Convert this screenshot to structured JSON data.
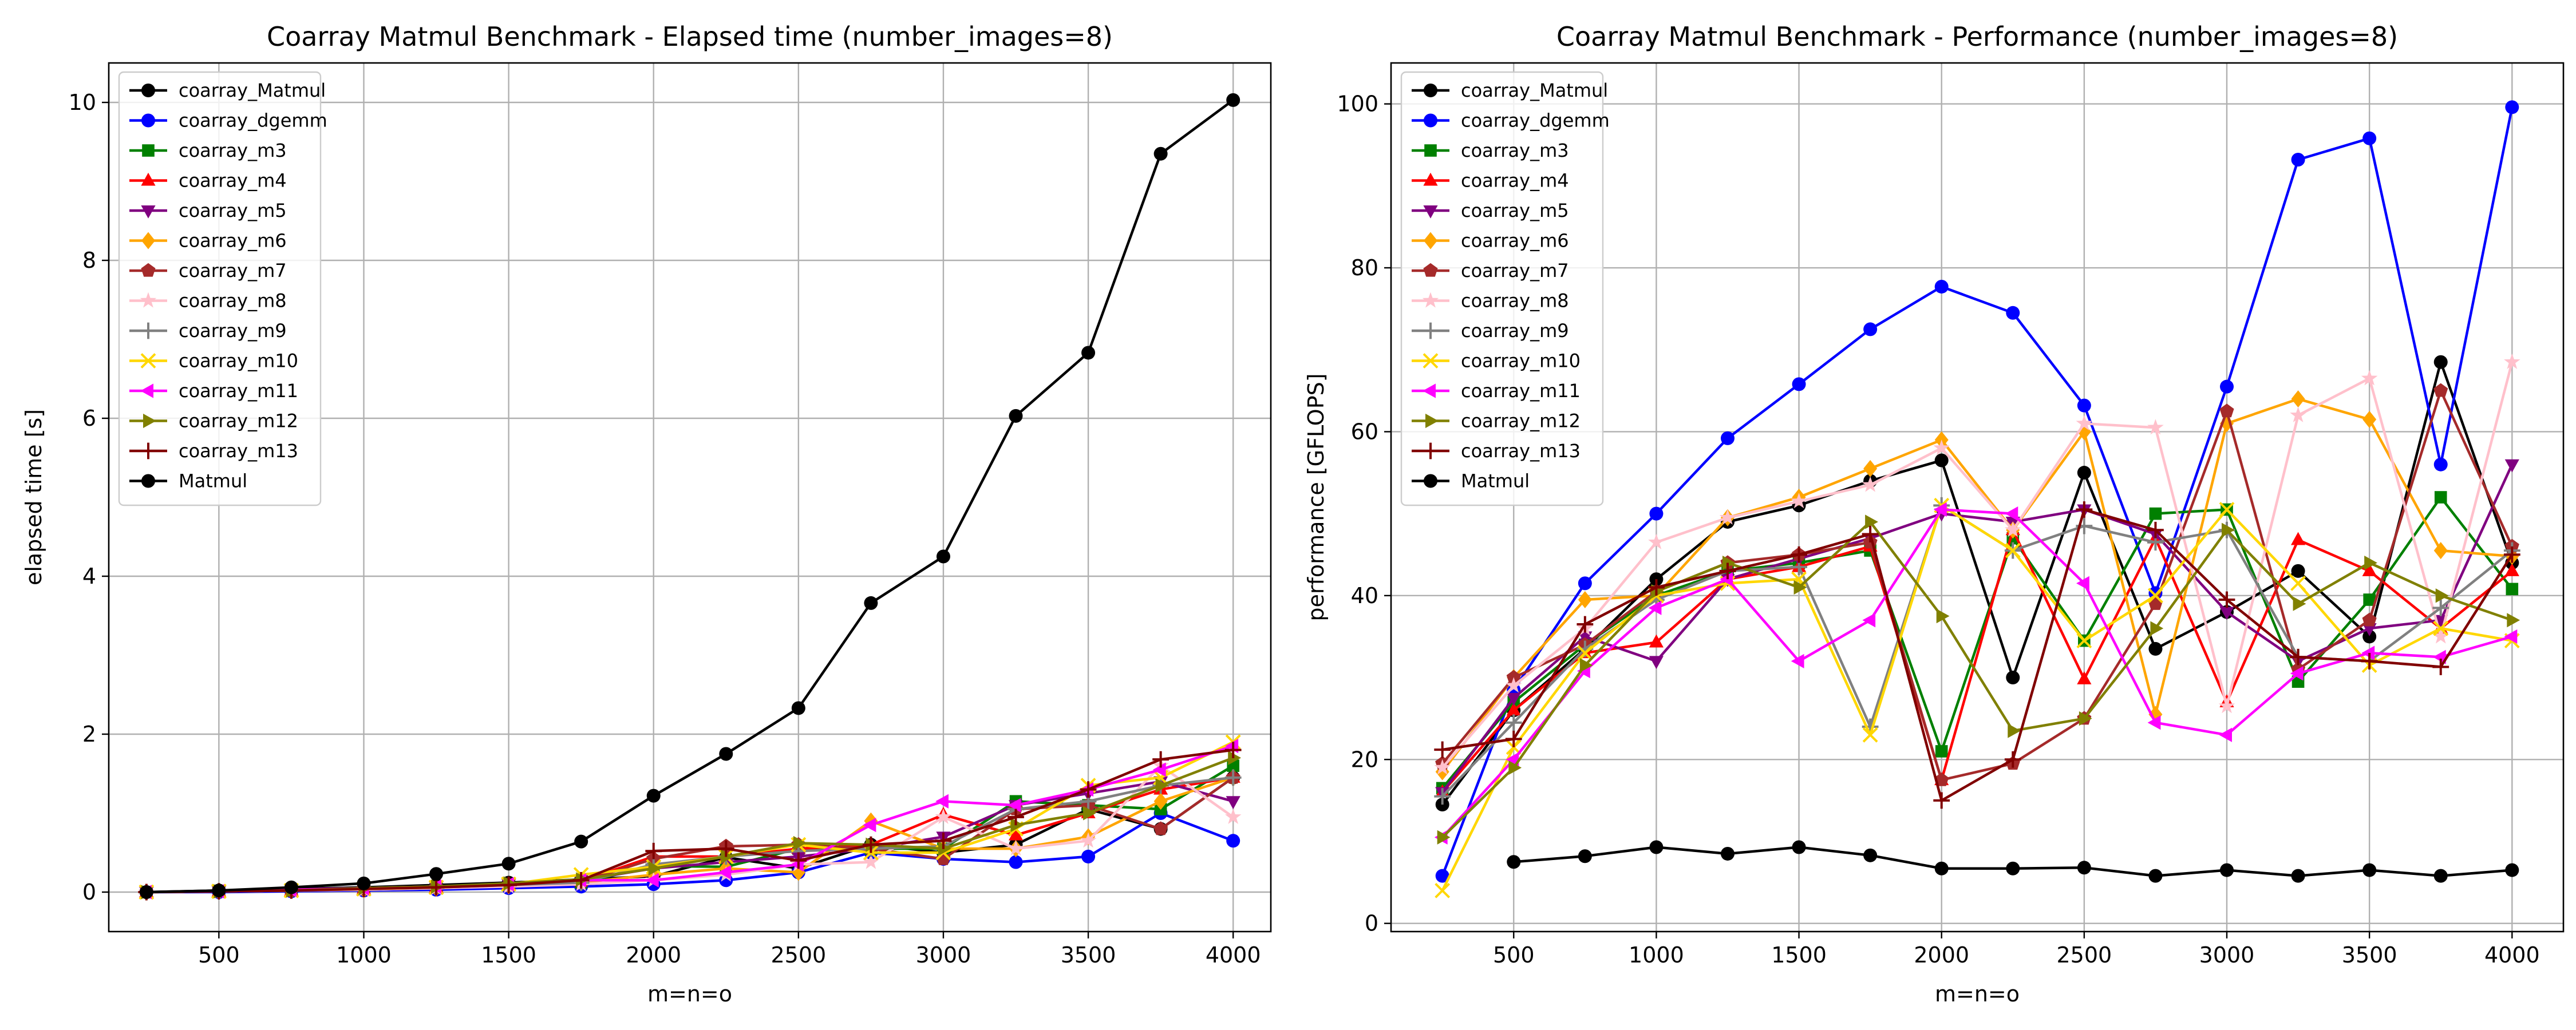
{
  "chart_data": [
    {
      "type": "line",
      "title": "Coarray Matmul Benchmark - Elapsed time (number_images=8)",
      "xlabel": "m=n=o",
      "ylabel": "elapsed time [s]",
      "x": [
        250,
        500,
        750,
        1000,
        1250,
        1500,
        1750,
        2000,
        2250,
        2500,
        2750,
        3000,
        3250,
        3500,
        3750,
        4000
      ],
      "xlim": [
        120,
        4130
      ],
      "ylim": [
        -0.5,
        10.5
      ],
      "xticks": [
        500,
        1000,
        1500,
        2000,
        2500,
        3000,
        3500,
        4000
      ],
      "yticks": [
        0,
        2,
        4,
        6,
        8,
        10
      ],
      "grid": true,
      "legend": "top-left",
      "series": [
        {
          "name": "coarray_Matmul",
          "values": [
            0.0,
            0.02,
            0.04,
            0.06,
            0.09,
            0.12,
            0.16,
            0.2,
            0.44,
            0.3,
            0.6,
            0.5,
            0.6,
            1.05,
            0.8,
            1.45
          ]
        },
        {
          "name": "coarray_dgemm",
          "values": [
            0.0,
            0.0,
            0.01,
            0.02,
            0.03,
            0.05,
            0.07,
            0.1,
            0.15,
            0.25,
            0.5,
            0.42,
            0.38,
            0.45,
            1.0,
            0.65
          ]
        },
        {
          "name": "coarray_m3",
          "values": [
            0.0,
            0.01,
            0.02,
            0.04,
            0.06,
            0.09,
            0.12,
            0.33,
            0.32,
            0.55,
            0.55,
            0.55,
            1.15,
            1.1,
            1.05,
            1.6
          ]
        },
        {
          "name": "coarray_m4",
          "values": [
            0.0,
            0.01,
            0.02,
            0.04,
            0.06,
            0.1,
            0.14,
            0.45,
            0.45,
            0.55,
            0.6,
            0.98,
            0.72,
            1.0,
            1.3,
            1.45
          ]
        },
        {
          "name": "coarray_m5",
          "values": [
            0.0,
            0.01,
            0.03,
            0.05,
            0.07,
            0.1,
            0.15,
            0.3,
            0.38,
            0.45,
            0.55,
            0.7,
            1.1,
            1.25,
            1.4,
            1.15
          ]
        },
        {
          "name": "coarray_m6",
          "values": [
            0.0,
            0.01,
            0.02,
            0.03,
            0.05,
            0.08,
            0.12,
            0.22,
            0.3,
            0.25,
            0.9,
            0.55,
            0.55,
            0.7,
            1.15,
            1.45
          ]
        },
        {
          "name": "coarray_m7",
          "values": [
            0.0,
            0.01,
            0.02,
            0.04,
            0.06,
            0.09,
            0.13,
            0.42,
            0.58,
            0.6,
            0.55,
            0.42,
            1.05,
            1.1,
            0.8,
            1.45
          ]
        },
        {
          "name": "coarray_m8",
          "values": [
            0.0,
            0.01,
            0.02,
            0.03,
            0.05,
            0.07,
            0.1,
            0.15,
            0.22,
            0.35,
            0.38,
            0.95,
            0.55,
            0.65,
            1.6,
            0.95
          ]
        },
        {
          "name": "coarray_m9",
          "values": [
            0.0,
            0.01,
            0.02,
            0.04,
            0.06,
            0.09,
            0.12,
            0.35,
            0.45,
            0.52,
            0.55,
            0.58,
            1.05,
            1.15,
            1.35,
            1.45
          ]
        },
        {
          "name": "coarray_m10",
          "values": [
            0.0,
            0.01,
            0.02,
            0.04,
            0.06,
            0.1,
            0.22,
            0.32,
            0.45,
            0.6,
            0.5,
            0.5,
            0.8,
            1.35,
            1.45,
            1.9
          ]
        },
        {
          "name": "coarray_m11",
          "values": [
            0.0,
            0.01,
            0.03,
            0.05,
            0.07,
            0.1,
            0.15,
            0.15,
            0.25,
            0.35,
            0.85,
            1.15,
            1.1,
            1.3,
            1.55,
            1.85
          ]
        },
        {
          "name": "coarray_m12",
          "values": [
            0.0,
            0.01,
            0.02,
            0.05,
            0.07,
            0.11,
            0.16,
            0.3,
            0.45,
            0.62,
            0.6,
            0.55,
            0.85,
            1.0,
            1.35,
            1.7
          ]
        },
        {
          "name": "coarray_m13",
          "values": [
            0.0,
            0.01,
            0.02,
            0.04,
            0.06,
            0.09,
            0.15,
            0.52,
            0.55,
            0.4,
            0.6,
            0.65,
            0.95,
            1.3,
            1.68,
            1.8
          ]
        },
        {
          "name": "Matmul",
          "values": [
            0.0,
            0.02,
            0.06,
            0.11,
            0.23,
            0.36,
            0.64,
            1.22,
            1.75,
            2.33,
            3.66,
            4.25,
            6.03,
            6.83,
            9.35,
            10.03
          ]
        }
      ]
    },
    {
      "type": "line",
      "title": "Coarray Matmul Benchmark - Performance (number_images=8)",
      "xlabel": "m=n=o",
      "ylabel": "performance [GFLOPS]",
      "x": [
        250,
        500,
        750,
        1000,
        1250,
        1500,
        1750,
        2000,
        2250,
        2500,
        2750,
        3000,
        3250,
        3500,
        3750,
        4000
      ],
      "xlim": [
        70,
        4180
      ],
      "ylim": [
        -1,
        105
      ],
      "xticks": [
        500,
        1000,
        1500,
        2000,
        2500,
        3000,
        3500,
        4000
      ],
      "yticks": [
        0,
        20,
        40,
        60,
        80,
        100
      ],
      "grid": true,
      "legend": "top-left",
      "series": [
        {
          "name": "coarray_Matmul",
          "values": [
            14.5,
            26.0,
            33.5,
            42.0,
            49.0,
            51.0,
            54.0,
            56.5,
            30.0,
            55.0,
            33.5,
            38.0,
            43.0,
            35.0,
            68.5,
            44.0
          ]
        },
        {
          "name": "coarray_dgemm",
          "values": [
            5.8,
            28.5,
            41.5,
            50.0,
            59.2,
            65.8,
            72.5,
            77.7,
            74.5,
            63.2,
            40.3,
            65.5,
            93.2,
            95.8,
            56.0,
            99.6
          ]
        },
        {
          "name": "coarray_m3",
          "values": [
            16.5,
            27.0,
            34.0,
            40.0,
            43.0,
            44.0,
            45.5,
            21.0,
            47.0,
            34.5,
            50.0,
            50.5,
            29.5,
            39.5,
            52.0,
            40.8
          ]
        },
        {
          "name": "coarray_m4",
          "values": [
            16.0,
            26.0,
            33.0,
            34.3,
            42.0,
            43.5,
            46.0,
            17.5,
            48.0,
            29.8,
            47.0,
            27.0,
            46.8,
            43.0,
            36.0,
            43.0
          ]
        },
        {
          "name": "coarray_m5",
          "values": [
            16.0,
            27.5,
            35.0,
            32.0,
            42.0,
            44.5,
            47.0,
            50.0,
            49.0,
            50.5,
            47.5,
            38.0,
            32.0,
            36.0,
            37.0,
            56.0
          ]
        },
        {
          "name": "coarray_m6",
          "values": [
            18.5,
            30.0,
            39.5,
            40.0,
            49.5,
            52.0,
            55.5,
            59.0,
            48.0,
            60.0,
            25.5,
            61.0,
            64.0,
            61.5,
            45.5,
            44.8
          ]
        },
        {
          "name": "coarray_m7",
          "values": [
            19.5,
            30.0,
            34.0,
            40.5,
            44.0,
            45.0,
            46.5,
            17.5,
            19.5,
            25.0,
            39.0,
            62.5,
            31.0,
            37.0,
            65.0,
            46.0
          ]
        },
        {
          "name": "coarray_m8",
          "values": [
            19.0,
            29.0,
            36.0,
            46.5,
            49.5,
            51.5,
            53.5,
            58.0,
            48.0,
            61.0,
            60.5,
            26.5,
            62.0,
            66.5,
            35.0,
            68.5
          ]
        },
        {
          "name": "coarray_m9",
          "values": [
            15.5,
            24.5,
            33.5,
            39.5,
            43.0,
            43.5,
            24.0,
            51.0,
            45.5,
            48.5,
            46.5,
            48.0,
            32.5,
            32.0,
            38.5,
            45.5
          ]
        },
        {
          "name": "coarray_m10",
          "values": [
            4.0,
            21.5,
            33.0,
            40.0,
            41.5,
            42.0,
            23.0,
            51.0,
            45.5,
            34.5,
            40.0,
            50.5,
            41.5,
            31.5,
            36.0,
            34.5
          ]
        },
        {
          "name": "coarray_m11",
          "values": [
            10.5,
            20.0,
            30.8,
            38.5,
            42.0,
            32.0,
            37.0,
            50.5,
            50.0,
            41.5,
            24.5,
            23.0,
            30.5,
            33.0,
            32.5,
            35.0
          ]
        },
        {
          "name": "coarray_m12",
          "values": [
            10.5,
            19.0,
            31.5,
            40.5,
            44.0,
            41.0,
            49.0,
            37.5,
            23.5,
            25.0,
            36.0,
            48.0,
            39.0,
            44.0,
            40.0,
            37.0
          ]
        },
        {
          "name": "coarray_m13",
          "values": [
            21.2,
            22.5,
            36.5,
            41.0,
            43.0,
            45.0,
            47.5,
            15.0,
            20.0,
            50.5,
            48.0,
            39.5,
            32.5,
            32.0,
            31.3,
            45.0
          ]
        },
        {
          "name": "Matmul",
          "values": [
            null,
            7.5,
            8.2,
            9.3,
            8.5,
            9.3,
            8.3,
            6.7,
            6.7,
            6.8,
            5.8,
            6.5,
            5.8,
            6.5,
            5.8,
            6.5
          ]
        }
      ]
    }
  ],
  "styles": [
    {
      "color": "#000000",
      "marker": "circle"
    },
    {
      "color": "#0000ff",
      "marker": "circle"
    },
    {
      "color": "#008000",
      "marker": "square"
    },
    {
      "color": "#ff0000",
      "marker": "triangle-up"
    },
    {
      "color": "#800080",
      "marker": "triangle-down"
    },
    {
      "color": "#ffa500",
      "marker": "diamond"
    },
    {
      "color": "#a52a2a",
      "marker": "pentagon"
    },
    {
      "color": "#ffc0cb",
      "marker": "star"
    },
    {
      "color": "#808080",
      "marker": "plus"
    },
    {
      "color": "#ffd700",
      "marker": "x"
    },
    {
      "color": "#ff00ff",
      "marker": "triangle-left"
    },
    {
      "color": "#808000",
      "marker": "triangle-right"
    },
    {
      "color": "#800000",
      "marker": "plus"
    },
    {
      "color": "#000000",
      "marker": "circle"
    }
  ]
}
